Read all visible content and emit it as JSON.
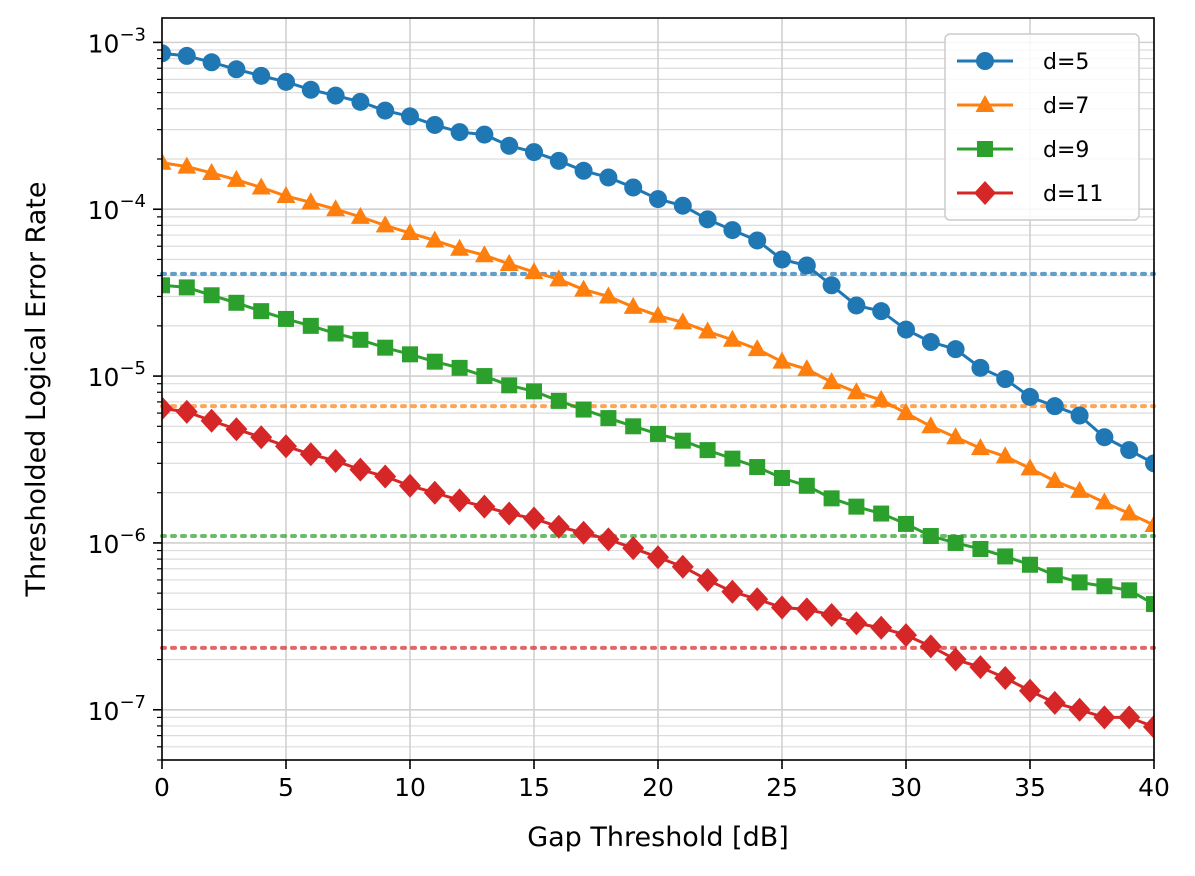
{
  "chart_data": {
    "type": "line",
    "title": "",
    "xlabel": "Gap Threshold [dB]",
    "ylabel": "Thresholded Logical Error Rate",
    "xscale": "linear",
    "yscale": "log",
    "xlim": [
      0,
      40
    ],
    "ylim": [
      5e-08,
      0.0014
    ],
    "xticks": [
      0,
      5,
      10,
      15,
      20,
      25,
      30,
      35,
      40
    ],
    "yticks": [
      {
        "value": 1e-07,
        "base": "10",
        "exp": "−7"
      },
      {
        "value": 1e-06,
        "base": "10",
        "exp": "−6"
      },
      {
        "value": 1e-05,
        "base": "10",
        "exp": "−5"
      },
      {
        "value": 0.0001,
        "base": "10",
        "exp": "−4"
      },
      {
        "value": 0.001,
        "base": "10",
        "exp": "−3"
      }
    ],
    "grid": true,
    "legend_position": "top-right",
    "x": [
      0,
      1,
      2,
      3,
      4,
      5,
      6,
      7,
      8,
      9,
      10,
      11,
      12,
      13,
      14,
      15,
      16,
      17,
      18,
      19,
      20,
      21,
      22,
      23,
      24,
      25,
      26,
      27,
      28,
      29,
      30,
      31,
      32,
      33,
      34,
      35,
      36,
      37,
      38,
      39,
      40
    ],
    "series": [
      {
        "name": "d=5",
        "color": "#1f77b4",
        "marker": "circle",
        "values": [
          0.00086,
          0.00083,
          0.00076,
          0.00069,
          0.00063,
          0.00058,
          0.00052,
          0.00048,
          0.00044,
          0.00039,
          0.00036,
          0.00032,
          0.00029,
          0.00028,
          0.00024,
          0.00022,
          0.000195,
          0.00017,
          0.000155,
          0.000135,
          0.000115,
          0.000105,
          8.7e-05,
          7.5e-05,
          6.5e-05,
          5e-05,
          4.6e-05,
          3.5e-05,
          2.65e-05,
          2.45e-05,
          1.9e-05,
          1.6e-05,
          1.45e-05,
          1.12e-05,
          9.6e-06,
          7.5e-06,
          6.6e-06,
          5.8e-06,
          4.3e-06,
          3.6e-06,
          3e-06
        ],
        "threshold": 4.1e-05
      },
      {
        "name": "d=7",
        "color": "#ff7f0e",
        "marker": "triangle",
        "values": [
          0.00019,
          0.00018,
          0.000165,
          0.00015,
          0.000135,
          0.00012,
          0.00011,
          0.0001,
          9e-05,
          8e-05,
          7.2e-05,
          6.5e-05,
          5.8e-05,
          5.3e-05,
          4.7e-05,
          4.2e-05,
          3.8e-05,
          3.3e-05,
          3e-05,
          2.6e-05,
          2.3e-05,
          2.1e-05,
          1.85e-05,
          1.65e-05,
          1.45e-05,
          1.22e-05,
          1.1e-05,
          9.2e-06,
          8e-06,
          7.2e-06,
          6e-06,
          5e-06,
          4.3e-06,
          3.7e-06,
          3.3e-06,
          2.8e-06,
          2.35e-06,
          2.05e-06,
          1.75e-06,
          1.5e-06,
          1.28e-06
        ],
        "threshold": 6.6e-06
      },
      {
        "name": "d=9",
        "color": "#2ca02c",
        "marker": "square",
        "values": [
          3.5e-05,
          3.4e-05,
          3.05e-05,
          2.75e-05,
          2.45e-05,
          2.2e-05,
          2e-05,
          1.8e-05,
          1.65e-05,
          1.48e-05,
          1.35e-05,
          1.22e-05,
          1.12e-05,
          1e-05,
          8.8e-06,
          8.1e-06,
          7.1e-06,
          6.3e-06,
          5.6e-06,
          5e-06,
          4.5e-06,
          4.1e-06,
          3.6e-06,
          3.2e-06,
          2.85e-06,
          2.45e-06,
          2.2e-06,
          1.85e-06,
          1.65e-06,
          1.5e-06,
          1.3e-06,
          1.1e-06,
          1e-06,
          9.2e-07,
          8.3e-07,
          7.4e-07,
          6.4e-07,
          5.8e-07,
          5.5e-07,
          5.2e-07,
          4.3e-07
        ],
        "threshold": 1.1e-06
      },
      {
        "name": "d=11",
        "color": "#d62728",
        "marker": "diamond",
        "values": [
          6.4e-06,
          6.1e-06,
          5.4e-06,
          4.8e-06,
          4.3e-06,
          3.8e-06,
          3.4e-06,
          3.1e-06,
          2.75e-06,
          2.5e-06,
          2.2e-06,
          2e-06,
          1.8e-06,
          1.65e-06,
          1.5e-06,
          1.4e-06,
          1.25e-06,
          1.15e-06,
          1.05e-06,
          9.3e-07,
          8.2e-07,
          7.2e-07,
          6e-07,
          5.1e-07,
          4.6e-07,
          4.1e-07,
          4e-07,
          3.7e-07,
          3.3e-07,
          3.1e-07,
          2.8e-07,
          2.4e-07,
          2e-07,
          1.8e-07,
          1.55e-07,
          1.3e-07,
          1.1e-07,
          1e-07,
          9e-08,
          9e-08,
          7.9e-08
        ],
        "threshold": 2.35e-07
      }
    ]
  }
}
